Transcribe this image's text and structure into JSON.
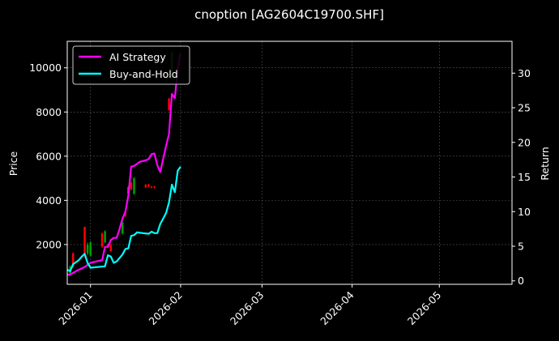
{
  "chart_data": {
    "type": "line",
    "title": "cnoption [AG2604C19700.SHF]",
    "xlabel": "",
    "ylabel": "Price",
    "y2label": "Return",
    "x_axis_type": "date",
    "xlim": [
      "2025-12-24",
      "2026-05-26"
    ],
    "ylim": [
      200,
      11200
    ],
    "y2lim": [
      -0.5,
      34.6
    ],
    "x_ticks": [
      "2026-01-01",
      "2026-02-01",
      "2026-03-01",
      "2026-04-01",
      "2026-05-01"
    ],
    "x_tick_labels": [
      "2026-01",
      "2026-02",
      "2026-03",
      "2026-04",
      "2026-05"
    ],
    "y_ticks": [
      2000,
      4000,
      6000,
      8000,
      10000
    ],
    "y2_ticks": [
      0,
      5,
      10,
      15,
      20,
      25,
      30
    ],
    "grid": true,
    "legend": {
      "position": "top-left",
      "entries": [
        {
          "name": "AI Strategy",
          "color": "#ff00ff"
        },
        {
          "name": "Buy-and-Hold",
          "color": "#00ffff"
        }
      ]
    },
    "candlesticks": [
      {
        "date": "2025-12-25",
        "open": 700,
        "close": 1000,
        "high": 1050,
        "low": 650
      },
      {
        "date": "2025-12-26",
        "open": 1600,
        "close": 1000,
        "high": 1650,
        "low": 950
      },
      {
        "date": "2025-12-30",
        "open": 2800,
        "close": 1500,
        "high": 2800,
        "low": 1400
      },
      {
        "date": "2025-12-31",
        "open": 1600,
        "close": 2000,
        "high": 2100,
        "low": 1500
      },
      {
        "date": "2026-01-01",
        "open": 1500,
        "close": 2100,
        "high": 2150,
        "low": 1450
      },
      {
        "date": "2026-01-05",
        "open": 2500,
        "close": 1900,
        "high": 2550,
        "low": 1850
      },
      {
        "date": "2026-01-06",
        "open": 2100,
        "close": 2600,
        "high": 2650,
        "low": 2050
      },
      {
        "date": "2026-01-07",
        "open": 2000,
        "close": 1900,
        "high": 2050,
        "low": 1850
      },
      {
        "date": "2026-01-08",
        "open": 2000,
        "close": 1700,
        "high": 2050,
        "low": 1650
      },
      {
        "date": "2026-01-12",
        "open": 2500,
        "close": 3000,
        "high": 3050,
        "low": 2450
      },
      {
        "date": "2026-01-13",
        "open": 3500,
        "close": 3300,
        "high": 3550,
        "low": 3250
      },
      {
        "date": "2026-01-14",
        "open": 4300,
        "close": 4600,
        "high": 4650,
        "low": 4250
      },
      {
        "date": "2026-01-15",
        "open": 4800,
        "close": 4500,
        "high": 4850,
        "low": 4450
      },
      {
        "date": "2026-01-16",
        "open": 4300,
        "close": 5000,
        "high": 5050,
        "low": 4250
      },
      {
        "date": "2026-01-20",
        "open": 4700,
        "close": 4600,
        "high": 4750,
        "low": 4550
      },
      {
        "date": "2026-01-21",
        "open": 4700,
        "close": 4650,
        "high": 4750,
        "low": 4600
      },
      {
        "date": "2026-01-22",
        "open": 4620,
        "close": 4580,
        "high": 4660,
        "low": 4540
      },
      {
        "date": "2026-01-23",
        "open": 4620,
        "close": 4580,
        "high": 4660,
        "low": 4540
      },
      {
        "date": "2026-01-28",
        "open": 8600,
        "close": 8100,
        "high": 8650,
        "low": 8050
      },
      {
        "date": "2026-01-29",
        "open": 9500,
        "close": 10700,
        "high": 10750,
        "low": 9450
      }
    ],
    "series": [
      {
        "name": "AI Strategy",
        "color": "#ff00ff",
        "axis": "right",
        "points": [
          [
            "2025-12-24",
            0.9
          ],
          [
            "2025-12-25",
            0.9
          ],
          [
            "2025-12-27",
            1.4
          ],
          [
            "2025-12-30",
            2.0
          ],
          [
            "2025-12-31",
            2.3
          ],
          [
            "2026-01-01",
            2.6
          ],
          [
            "2026-01-05",
            3.0
          ],
          [
            "2026-01-06",
            4.9
          ],
          [
            "2026-01-07",
            4.9
          ],
          [
            "2026-01-08",
            5.9
          ],
          [
            "2026-01-09",
            6.2
          ],
          [
            "2026-01-10",
            6.2
          ],
          [
            "2026-01-11",
            7.5
          ],
          [
            "2026-01-12",
            9.0
          ],
          [
            "2026-01-13",
            10.0
          ],
          [
            "2026-01-14",
            12.3
          ],
          [
            "2026-01-15",
            16.5
          ],
          [
            "2026-01-16",
            16.6
          ],
          [
            "2026-01-17",
            16.9
          ],
          [
            "2026-01-18",
            17.2
          ],
          [
            "2026-01-20",
            17.4
          ],
          [
            "2026-01-21",
            17.6
          ],
          [
            "2026-01-22",
            18.3
          ],
          [
            "2026-01-23",
            18.4
          ],
          [
            "2026-01-24",
            16.7
          ],
          [
            "2026-01-25",
            15.7
          ],
          [
            "2026-01-27",
            19.5
          ],
          [
            "2026-01-28",
            21.2
          ],
          [
            "2026-01-29",
            27.0
          ],
          [
            "2026-01-30",
            26.4
          ],
          [
            "2026-01-31",
            30.6
          ],
          [
            "2026-02-01",
            32.9
          ]
        ]
      },
      {
        "name": "Buy-and-Hold",
        "color": "#00ffff",
        "axis": "right",
        "points": [
          [
            "2025-12-24",
            1.6
          ],
          [
            "2025-12-25",
            1.4
          ],
          [
            "2025-12-26",
            2.4
          ],
          [
            "2025-12-28",
            3.0
          ],
          [
            "2025-12-29",
            3.5
          ],
          [
            "2025-12-30",
            3.9
          ],
          [
            "2025-12-31",
            2.6
          ],
          [
            "2026-01-01",
            1.9
          ],
          [
            "2026-01-06",
            2.1
          ],
          [
            "2026-01-07",
            3.7
          ],
          [
            "2026-01-08",
            3.5
          ],
          [
            "2026-01-09",
            2.6
          ],
          [
            "2026-01-10",
            2.8
          ],
          [
            "2026-01-12",
            3.8
          ],
          [
            "2026-01-13",
            4.6
          ],
          [
            "2026-01-14",
            4.7
          ],
          [
            "2026-01-15",
            6.5
          ],
          [
            "2026-01-16",
            6.6
          ],
          [
            "2026-01-17",
            7.0
          ],
          [
            "2026-01-19",
            6.9
          ],
          [
            "2026-01-21",
            6.8
          ],
          [
            "2026-01-22",
            7.1
          ],
          [
            "2026-01-23",
            6.9
          ],
          [
            "2026-01-24",
            6.9
          ],
          [
            "2026-01-25",
            8.2
          ],
          [
            "2026-01-27",
            9.8
          ],
          [
            "2026-01-28",
            11.3
          ],
          [
            "2026-01-29",
            13.9
          ],
          [
            "2026-01-30",
            12.8
          ],
          [
            "2026-01-31",
            15.9
          ],
          [
            "2026-02-01",
            16.5
          ]
        ]
      }
    ]
  },
  "colors": {
    "background": "#000000",
    "foreground": "#ffffff",
    "grid": "#555555",
    "candle_up": "#00a000",
    "candle_down": "#ff0000"
  }
}
